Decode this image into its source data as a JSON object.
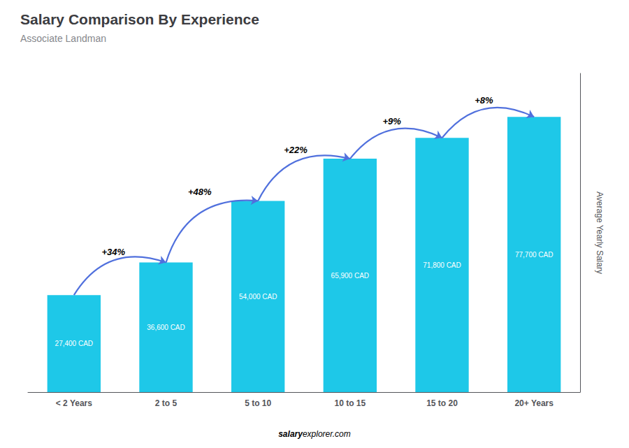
{
  "chart_data": {
    "type": "bar",
    "title": "Salary Comparison By Experience",
    "subtitle": "Associate Landman",
    "ylabel": "Average Yearly Salary",
    "categories": [
      "< 2 Years",
      "2 to 5",
      "5 to 10",
      "10 to 15",
      "15 to 20",
      "20+ Years"
    ],
    "values": [
      27400,
      36600,
      54000,
      65900,
      71800,
      77700
    ],
    "value_labels": [
      "27,400 CAD",
      "36,600 CAD",
      "54,000 CAD",
      "65,900 CAD",
      "71,800 CAD",
      "77,700 CAD"
    ],
    "data_labels": true,
    "annotations": [
      {
        "text": "+34%",
        "from": "< 2 Years",
        "to": "2 to 5"
      },
      {
        "text": "+48%",
        "from": "2 to 5",
        "to": "5 to 10"
      },
      {
        "text": "+22%",
        "from": "5 to 10",
        "to": "10 to 15"
      },
      {
        "text": "+9%",
        "from": "10 to 15",
        "to": "15 to 20"
      },
      {
        "text": "+8%",
        "from": "15 to 20",
        "to": "20+ Years"
      }
    ],
    "footer": [
      "salary",
      "explorer.com"
    ],
    "color": "#1EC8E8",
    "ylim": [
      0,
      90000
    ],
    "tick_labels": "x",
    "grid": false
  }
}
